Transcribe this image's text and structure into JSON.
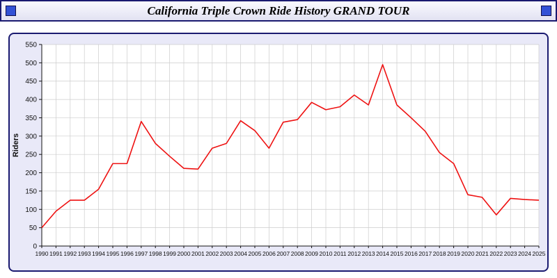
{
  "header": {
    "title": "California Triple Crown Ride History GRAND TOUR"
  },
  "colors": {
    "line": "#ee1111",
    "panel_bg": "#e9e9f8",
    "panel_border": "#1a1a70",
    "grid": "#cccccc",
    "axis": "#111111",
    "plot_bg": "#ffffff",
    "deco_square": "#3352d6"
  },
  "chart_data": {
    "type": "line",
    "title": "California Triple Crown Ride History GRAND TOUR",
    "xlabel": "",
    "ylabel": "Riders",
    "ylim": [
      0,
      550
    ],
    "ytick_step": 50,
    "grid": true,
    "legend": false,
    "x": [
      1990,
      1991,
      1992,
      1993,
      1994,
      1995,
      1996,
      1997,
      1998,
      1999,
      2000,
      2001,
      2002,
      2003,
      2004,
      2005,
      2006,
      2007,
      2008,
      2009,
      2010,
      2011,
      2012,
      2013,
      2014,
      2015,
      2016,
      2017,
      2018,
      2019,
      2020,
      2021,
      2022,
      2023,
      2024,
      2025
    ],
    "series": [
      {
        "name": "Riders",
        "values": [
          50,
          95,
          125,
          125,
          155,
          225,
          225,
          340,
          280,
          245,
          212,
          210,
          267,
          280,
          342,
          315,
          267,
          338,
          345,
          392,
          372,
          380,
          412,
          385,
          495,
          385,
          350,
          313,
          255,
          225,
          140,
          133,
          85,
          130,
          127,
          125
        ]
      }
    ]
  }
}
